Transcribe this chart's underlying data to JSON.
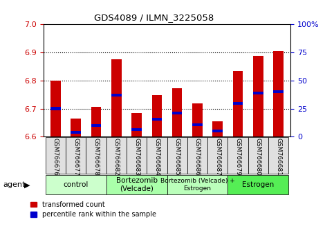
{
  "title": "GDS4089 / ILMN_3225058",
  "samples": [
    "GSM766676",
    "GSM766677",
    "GSM766678",
    "GSM766682",
    "GSM766683",
    "GSM766684",
    "GSM766685",
    "GSM766686",
    "GSM766687",
    "GSM766679",
    "GSM766680",
    "GSM766681"
  ],
  "bar_values": [
    6.8,
    6.665,
    6.705,
    6.875,
    6.685,
    6.748,
    6.773,
    6.718,
    6.655,
    6.835,
    6.888,
    6.905
  ],
  "percentile_values": [
    6.7,
    6.615,
    6.64,
    6.748,
    6.625,
    6.663,
    6.683,
    6.643,
    6.62,
    6.718,
    6.755,
    6.76
  ],
  "ymin": 6.6,
  "ymax": 7.0,
  "yticks_left": [
    6.6,
    6.7,
    6.8,
    6.9,
    7.0
  ],
  "yticks_right": [
    0,
    25,
    50,
    75,
    100
  ],
  "groups": [
    {
      "label": "control",
      "start": 0,
      "end": 3,
      "color": "#ccffcc"
    },
    {
      "label": "Bortezomib\n(Velcade)",
      "start": 3,
      "end": 6,
      "color": "#aaffaa"
    },
    {
      "label": "Bortezomib (Velcade) +\nEstrogen",
      "start": 6,
      "end": 9,
      "color": "#bbffbb"
    },
    {
      "label": "Estrogen",
      "start": 9,
      "end": 12,
      "color": "#55ee55"
    }
  ],
  "bar_color": "#cc0000",
  "percentile_color": "#0000cc",
  "bar_width": 0.5,
  "legend_items": [
    "transformed count",
    "percentile rank within the sample"
  ],
  "agent_label": "agent",
  "left_tick_color": "#cc0000",
  "right_tick_color": "#0000cc",
  "bg_color": "#e0e0e0",
  "grid_color": "black"
}
